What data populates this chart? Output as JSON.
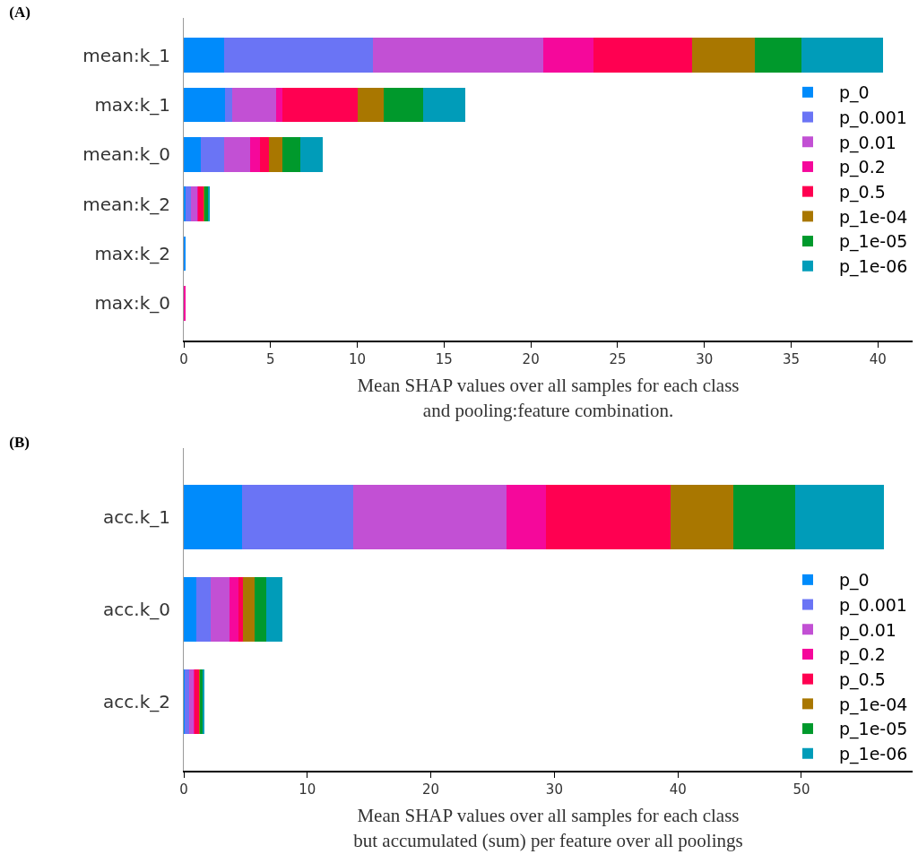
{
  "chart_data": [
    {
      "type": "bar",
      "title": "(A)",
      "orientation": "horizontal",
      "stacked": true,
      "legend": "right",
      "grid": false,
      "xlabel": "Mean SHAP values over all samples for each class\nand pooling:feature combination.",
      "categories": [
        "mean:k_1",
        "max:k_1",
        "mean:k_0",
        "mean:k_2",
        "max:k_2",
        "max:k_0"
      ],
      "xlim": [
        0,
        42
      ],
      "xticks": [
        0,
        5,
        10,
        15,
        20,
        25,
        30,
        35,
        40
      ],
      "series": [
        {
          "name": "p_0",
          "color": "#008bfb",
          "values": [
            2.3,
            2.4,
            1.0,
            0.1,
            0.1,
            0
          ]
        },
        {
          "name": "p_0.001",
          "color": "#6a74f5",
          "values": [
            8.6,
            0.4,
            1.3,
            0.3,
            0,
            0
          ]
        },
        {
          "name": "p_0.01",
          "color": "#c250d4",
          "values": [
            9.8,
            2.5,
            1.5,
            0.4,
            0,
            0
          ]
        },
        {
          "name": "p_0.2",
          "color": "#f5089b",
          "values": [
            2.9,
            0.4,
            0.6,
            0.05,
            0,
            0.1
          ]
        },
        {
          "name": "p_0.5",
          "color": "#ff0051",
          "values": [
            5.7,
            4.3,
            0.5,
            0.3,
            0,
            0
          ]
        },
        {
          "name": "p_1e-04",
          "color": "#a97700",
          "values": [
            3.6,
            1.5,
            0.8,
            0.05,
            0,
            0
          ]
        },
        {
          "name": "p_1e-05",
          "color": "#00992c",
          "values": [
            2.7,
            2.3,
            1.0,
            0.2,
            0,
            0
          ]
        },
        {
          "name": "p_1e-06",
          "color": "#009cb9",
          "values": [
            4.7,
            2.4,
            1.3,
            0.1,
            0,
            0
          ]
        }
      ]
    },
    {
      "type": "bar",
      "title": "(B)",
      "orientation": "horizontal",
      "stacked": true,
      "legend": "bottom right",
      "grid": false,
      "xlabel": "Mean SHAP values over all samples for each class\nbut accumulated (sum) per feature over all poolings",
      "categories": [
        "acc.k_1",
        "acc.k_0",
        "acc.k_2"
      ],
      "xlim": [
        0,
        59
      ],
      "xticks": [
        0,
        10,
        20,
        30,
        40,
        50
      ],
      "series": [
        {
          "name": "p_0",
          "color": "#008bfb",
          "values": [
            4.7,
            1.0,
            0.1
          ]
        },
        {
          "name": "p_0.001",
          "color": "#6a74f5",
          "values": [
            9.0,
            1.2,
            0.3
          ]
        },
        {
          "name": "p_0.01",
          "color": "#c250d4",
          "values": [
            12.4,
            1.5,
            0.4
          ]
        },
        {
          "name": "p_0.2",
          "color": "#f5089b",
          "values": [
            3.2,
            0.7,
            0.1
          ]
        },
        {
          "name": "p_0.5",
          "color": "#ff0051",
          "values": [
            10.1,
            0.4,
            0.3
          ]
        },
        {
          "name": "p_1e-04",
          "color": "#a97700",
          "values": [
            5.1,
            0.9,
            0.1
          ]
        },
        {
          "name": "p_1e-05",
          "color": "#00992c",
          "values": [
            5.0,
            1.0,
            0.2
          ]
        },
        {
          "name": "p_1e-06",
          "color": "#009cb9",
          "values": [
            7.2,
            1.3,
            0.2
          ]
        }
      ]
    }
  ]
}
